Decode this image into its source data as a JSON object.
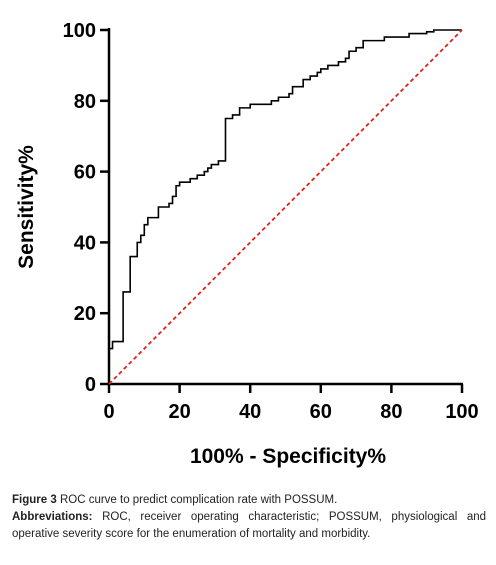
{
  "chart_data": {
    "type": "line",
    "xlabel": "100% - Specificity%",
    "ylabel": "Sensitivity%",
    "xlim": [
      0,
      100
    ],
    "ylim": [
      0,
      100
    ],
    "xticks": [
      0,
      20,
      40,
      60,
      80,
      100
    ],
    "yticks": [
      0,
      20,
      40,
      60,
      80,
      100
    ],
    "grid": false,
    "series": [
      {
        "color": "#000000",
        "linestyle": "solid",
        "step": true,
        "x": [
          0,
          1,
          4,
          4,
          6,
          6,
          8,
          8,
          9,
          10,
          11,
          13,
          14,
          17,
          18,
          19,
          20,
          23,
          25,
          27,
          28,
          29,
          31,
          33,
          33,
          35,
          37,
          39,
          40,
          43,
          46,
          48,
          50,
          51,
          52,
          55,
          57,
          59,
          60,
          62,
          64,
          65,
          67,
          68,
          70,
          72,
          78,
          85,
          90,
          92,
          100
        ],
        "values": [
          10,
          12,
          17,
          26,
          27,
          36,
          38,
          40,
          42,
          45,
          47,
          47,
          50,
          51,
          53,
          56,
          57,
          58,
          59,
          60,
          61,
          62,
          63,
          63,
          75,
          76,
          78,
          78,
          79,
          79,
          80,
          81,
          81,
          82,
          84,
          86,
          87,
          88,
          89,
          90,
          90,
          91,
          92,
          94,
          95,
          97,
          98,
          99,
          99.5,
          100,
          100
        ]
      },
      {
        "color": "#e0231f",
        "linestyle": "dashed",
        "step": false,
        "x": [
          0,
          100
        ],
        "values": [
          0,
          100
        ]
      }
    ]
  },
  "caption": {
    "label": "Figure 3",
    "text": "ROC curve to predict complication rate with POSSUM."
  },
  "abbreviations": {
    "label": "Abbreviations:",
    "text": "ROC, receiver operating characteristic; POSSUM, physiological and operative severity score for the enumeration of mortality and morbidity."
  }
}
